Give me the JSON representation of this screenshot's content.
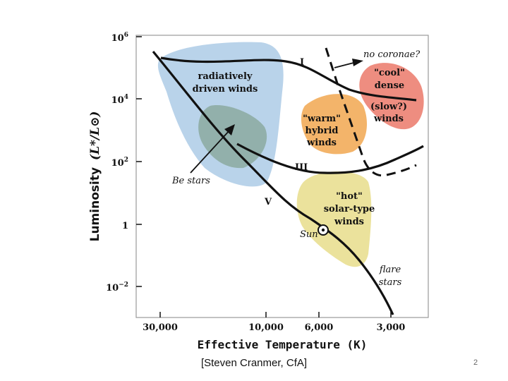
{
  "figure": {
    "y_axis": {
      "label": "Luminosity",
      "ratio_label": "(L*/L⊙)",
      "ticks": [
        {
          "base": "10",
          "exp": "6"
        },
        {
          "base": "10",
          "exp": "4"
        },
        {
          "base": "10",
          "exp": "2"
        },
        {
          "base": "1",
          "exp": ""
        },
        {
          "base": "10",
          "exp": "−2"
        }
      ]
    },
    "x_axis": {
      "label": "Effective Temperature (K)",
      "ticks": [
        "30,000",
        "10,000",
        "6,000",
        "3,000"
      ]
    },
    "regions": {
      "radiative": [
        "radiatively",
        "driven winds"
      ],
      "warm": [
        "\"warm\"",
        "hybrid",
        "winds"
      ],
      "cool": [
        "\"cool\"",
        "dense"
      ],
      "slow": [
        "(slow?)",
        "winds"
      ],
      "hot": [
        "\"hot\"",
        "solar-type",
        "winds"
      ]
    },
    "annotations": {
      "no_coronae": "no coronae?",
      "be_stars": "Be stars",
      "sun": "Sun",
      "flare": [
        "flare",
        "stars"
      ]
    },
    "branches": {
      "class_I": "I",
      "class_III": "III",
      "class_V": "V"
    },
    "colors": {
      "blue": "#b9d3ea",
      "teal": "#92b0ab",
      "orange": "#f3b46a",
      "red": "#ee8d80",
      "yellow": "#ebe29c",
      "ink": "#111111"
    }
  },
  "caption": "[Steven Cranmer, CfA]",
  "page_number": "2"
}
